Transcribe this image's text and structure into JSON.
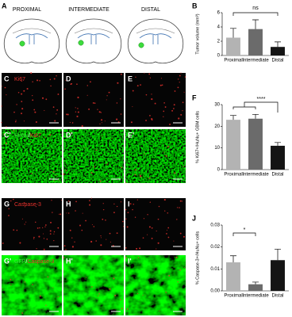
{
  "figure_a": {
    "panel": "A",
    "sections": [
      "PROXIMAL",
      "INTERMEDIATE",
      "DISTAL"
    ]
  },
  "micrographs": [
    {
      "panel": "C",
      "stain": [
        {
          "text": "Ki67",
          "color": "#e8322d"
        }
      ]
    },
    {
      "panel": "D"
    },
    {
      "panel": "E"
    },
    {
      "panel": "C'",
      "stain": [
        {
          "text": "HuNu",
          "color": "#3ddc3d"
        },
        {
          "text": "/",
          "color": "#ffffff"
        },
        {
          "text": "Ki67",
          "color": "#e8322d"
        }
      ]
    },
    {
      "panel": "D'"
    },
    {
      "panel": "E'"
    },
    {
      "panel": "G",
      "stain": [
        {
          "text": "Caspase-3",
          "color": "#e8322d"
        }
      ]
    },
    {
      "panel": "H"
    },
    {
      "panel": "I"
    },
    {
      "panel": "G'",
      "stain": [
        {
          "text": "GFP",
          "color": "#3ddc3d"
        },
        {
          "text": "/",
          "color": "#ffffff"
        },
        {
          "text": "Caspase-3",
          "color": "#e8322d"
        }
      ]
    },
    {
      "panel": "H'"
    },
    {
      "panel": "I'"
    }
  ],
  "chart_data": [
    {
      "type": "bar",
      "panel": "B",
      "y_label": "Tumor volume (mm³)",
      "categories": [
        "Proximal",
        "Intermediate",
        "Distal"
      ],
      "values": [
        2.5,
        3.7,
        1.2
      ],
      "errors": [
        1.3,
        1.3,
        0.7
      ],
      "colors": [
        "#b3b3b3",
        "#6b6b6b",
        "#141414"
      ],
      "ylim": [
        0,
        6
      ],
      "yticks": [
        0,
        2,
        4,
        6
      ],
      "annotation": "ns"
    },
    {
      "type": "bar",
      "panel": "F",
      "y_label": "% Ki67+/HuNu+ GBM cells",
      "categories": [
        "Proximal",
        "Intermediate",
        "Distal"
      ],
      "values": [
        23,
        23.5,
        11
      ],
      "errors": [
        2,
        2,
        1.5
      ],
      "colors": [
        "#b3b3b3",
        "#6b6b6b",
        "#141414"
      ],
      "ylim": [
        0,
        30
      ],
      "yticks": [
        0,
        10,
        20,
        30
      ],
      "annotation": "****"
    },
    {
      "type": "bar",
      "panel": "J",
      "y_label": "% Caspase-3+/HuNu+ cells",
      "categories": [
        "Proximal",
        "Intermediate",
        "Distal"
      ],
      "values": [
        0.013,
        0.003,
        0.014
      ],
      "errors": [
        0.003,
        0.001,
        0.005
      ],
      "colors": [
        "#b3b3b3",
        "#6b6b6b",
        "#141414"
      ],
      "ylim": [
        0,
        0.03
      ],
      "yticks": [
        {
          "value": 0,
          "label": "0.00"
        },
        0.01,
        0.02,
        0.03
      ],
      "annotation": "*"
    }
  ]
}
